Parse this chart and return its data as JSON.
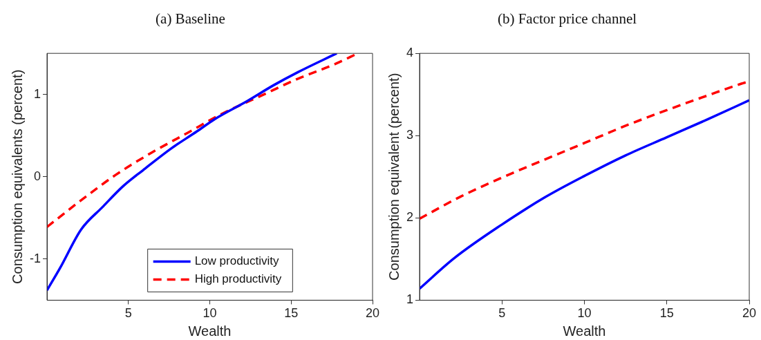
{
  "chart_data": [
    {
      "type": "line",
      "title": "(a) Baseline",
      "xlabel": "Wealth",
      "ylabel": "Consumption equivalents (percent)",
      "xlim": [
        0,
        20
      ],
      "xticks": [
        5,
        10,
        15,
        20
      ],
      "ylim": [
        -1.5,
        1.5
      ],
      "yticks": [
        -1,
        0,
        1
      ],
      "grid": false,
      "legend": "bottom",
      "series": [
        {
          "name": "Low productivity",
          "color": "#0000ff",
          "line_style": "solid",
          "x": [
            0,
            0.8,
            2.1,
            3.4,
            4.7,
            5.9,
            7.6,
            9.2,
            10.3,
            12.3,
            13.9,
            15.4,
            17.8
          ],
          "values": [
            -1.38,
            -1.11,
            -0.64,
            -0.37,
            -0.11,
            0.08,
            0.34,
            0.55,
            0.7,
            0.92,
            1.11,
            1.27,
            1.5
          ]
        },
        {
          "name": "High productivity",
          "color": "#ff0000",
          "line_style": "dashed",
          "x": [
            0,
            2,
            4.2,
            6.4,
            8.6,
            10.7,
            13.1,
            15.4,
            17.7,
            19.1
          ],
          "values": [
            -0.61,
            -0.3,
            0.02,
            0.29,
            0.53,
            0.76,
            0.98,
            1.19,
            1.37,
            1.5
          ]
        }
      ]
    },
    {
      "type": "line",
      "title": "(b) Factor price channel",
      "xlabel": "Wealth",
      "ylabel": "Consumption equivalent (percent)",
      "xlim": [
        0,
        20
      ],
      "xticks": [
        5,
        10,
        15,
        20
      ],
      "ylim": [
        1,
        4
      ],
      "yticks": [
        1,
        2,
        3,
        4
      ],
      "grid": false,
      "legend": false,
      "series": [
        {
          "color": "#0000ff",
          "line_style": "solid",
          "x": [
            0,
            2.1,
            5,
            7.6,
            10,
            12.5,
            15,
            17.5,
            20
          ],
          "values": [
            1.14,
            1.51,
            1.92,
            2.25,
            2.51,
            2.76,
            2.98,
            3.2,
            3.43
          ]
        },
        {
          "color": "#ff0000",
          "line_style": "dashed",
          "x": [
            0,
            2.5,
            5,
            7.6,
            10,
            12.5,
            15,
            17.5,
            19.5,
            20
          ],
          "values": [
            1.99,
            2.26,
            2.49,
            2.71,
            2.91,
            3.12,
            3.31,
            3.49,
            3.63,
            3.66
          ]
        }
      ]
    }
  ]
}
